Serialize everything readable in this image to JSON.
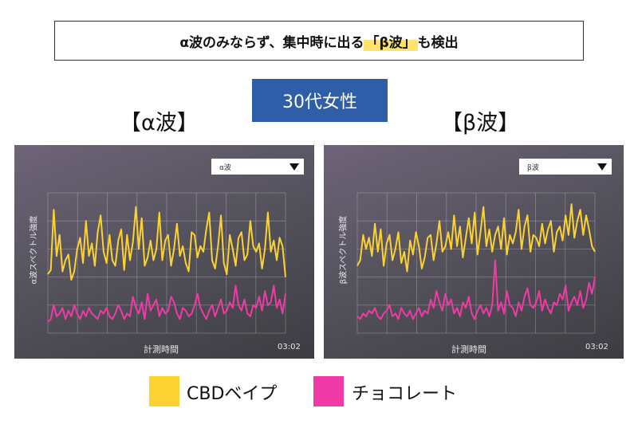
{
  "banner": {
    "prefix": "α波のみならず、集中時に出る",
    "highlight": "「β波」",
    "suffix": "も検出"
  },
  "badge": "30代女性",
  "colors": {
    "cbd": "#fbd232",
    "choco": "#f03aa6",
    "badge_bg": "#2f5ea8"
  },
  "legend": [
    {
      "label": "CBDベイプ",
      "color": "#fbd232"
    },
    {
      "label": "チョコレート",
      "color": "#f03aa6"
    }
  ],
  "chart_data": [
    {
      "type": "line",
      "panel_title": "【α波】",
      "dropdown": "α波",
      "xlabel": "計測時間",
      "ylabel": "α波スペクトル強度",
      "time_label": "03:02",
      "grid": true,
      "ylim": [
        0,
        100
      ],
      "series": [
        {
          "name": "CBDベイプ",
          "color": "#fbd232",
          "values": [
            42,
            45,
            88,
            55,
            70,
            44,
            52,
            56,
            38,
            44,
            60,
            68,
            50,
            80,
            55,
            64,
            48,
            72,
            84,
            58,
            50,
            70,
            52,
            48,
            66,
            74,
            45,
            70,
            52,
            65,
            90,
            60,
            82,
            48,
            54,
            66,
            52,
            60,
            86,
            52,
            66,
            70,
            48,
            60,
            78,
            55,
            62,
            50,
            44,
            72,
            70,
            54,
            62,
            58,
            74,
            86,
            52,
            46,
            62,
            84,
            50,
            42,
            70,
            60,
            48,
            68,
            72,
            52,
            56,
            80,
            62,
            58,
            64,
            46,
            60,
            86,
            58,
            66,
            52,
            68,
            62,
            40
          ]
        },
        {
          "name": "チョコレート",
          "color": "#f03aa6",
          "values": [
            8,
            10,
            20,
            12,
            14,
            18,
            10,
            16,
            12,
            20,
            14,
            10,
            16,
            12,
            18,
            14,
            12,
            10,
            16,
            14,
            18,
            12,
            10,
            14,
            20,
            16,
            10,
            14,
            12,
            26,
            18,
            14,
            22,
            10,
            28,
            16,
            20,
            24,
            12,
            18,
            14,
            16,
            26,
            22,
            14,
            10,
            18,
            16,
            12,
            14,
            20,
            28,
            18,
            14,
            10,
            16,
            20,
            12,
            18,
            24,
            14,
            16,
            22,
            18,
            34,
            20,
            16,
            24,
            14,
            12,
            20,
            18,
            26,
            16,
            30,
            20,
            22,
            34,
            18,
            24,
            14,
            28
          ]
        }
      ]
    },
    {
      "type": "line",
      "panel_title": "【β波】",
      "dropdown": "β波",
      "xlabel": "計測時間",
      "ylabel": "β波スペクトル強度",
      "time_label": "03:02",
      "grid": true,
      "ylim": [
        0,
        100
      ],
      "series": [
        {
          "name": "CBDベイプ",
          "color": "#fbd232",
          "values": [
            48,
            52,
            70,
            60,
            68,
            55,
            78,
            58,
            74,
            48,
            64,
            70,
            52,
            60,
            72,
            50,
            58,
            44,
            66,
            56,
            72,
            62,
            46,
            54,
            68,
            70,
            52,
            64,
            80,
            58,
            62,
            72,
            60,
            84,
            62,
            76,
            54,
            68,
            82,
            64,
            86,
            56,
            72,
            90,
            62,
            74,
            58,
            70,
            76,
            60,
            82,
            56,
            70,
            64,
            72,
            88,
            60,
            76,
            84,
            58,
            70,
            68,
            62,
            78,
            64,
            74,
            80,
            58,
            72,
            76,
            66,
            84,
            70,
            92,
            68,
            80,
            88,
            70,
            84,
            74,
            62,
            58
          ]
        },
        {
          "name": "チョコレート",
          "color": "#f03aa6",
          "values": [
            12,
            10,
            14,
            12,
            16,
            14,
            18,
            12,
            10,
            14,
            16,
            20,
            12,
            14,
            10,
            18,
            14,
            12,
            16,
            10,
            14,
            18,
            12,
            16,
            14,
            24,
            18,
            30,
            22,
            16,
            28,
            20,
            24,
            14,
            18,
            12,
            22,
            18,
            26,
            14,
            10,
            16,
            20,
            14,
            18,
            12,
            20,
            52,
            16,
            22,
            14,
            30,
            20,
            18,
            12,
            22,
            16,
            26,
            32,
            20,
            18,
            22,
            30,
            16,
            24,
            18,
            14,
            22,
            20,
            28,
            24,
            34,
            16,
            22,
            26,
            20,
            30,
            18,
            24,
            36,
            28,
            40
          ]
        }
      ]
    }
  ]
}
